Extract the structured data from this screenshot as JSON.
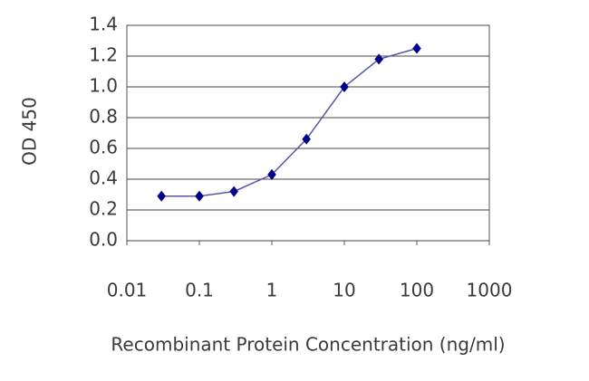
{
  "chart_data": {
    "type": "line",
    "x_label": "Recombinant Protein Concentration (ng/ml)",
    "y_label": "OD 450",
    "x": [
      0.03,
      0.1,
      0.3,
      1,
      3,
      10,
      30,
      100
    ],
    "series": [
      {
        "color": "#00008b",
        "values": [
          0.29,
          0.29,
          0.32,
          0.43,
          0.66,
          1.0,
          1.18,
          1.25
        ]
      }
    ],
    "line_color": "#5555aa",
    "xscale": "log",
    "xlim": [
      0.01,
      1000
    ],
    "xticks": [
      0.01,
      0.1,
      1,
      10,
      100,
      1000
    ],
    "ylim": [
      0,
      1.4
    ],
    "yticks": [
      {
        "value": 0,
        "label": "0.0"
      },
      0.2,
      0.4,
      0.6,
      0.8,
      {
        "value": 1,
        "label": "1.0"
      },
      1.2,
      1.4
    ],
    "grid": true
  }
}
